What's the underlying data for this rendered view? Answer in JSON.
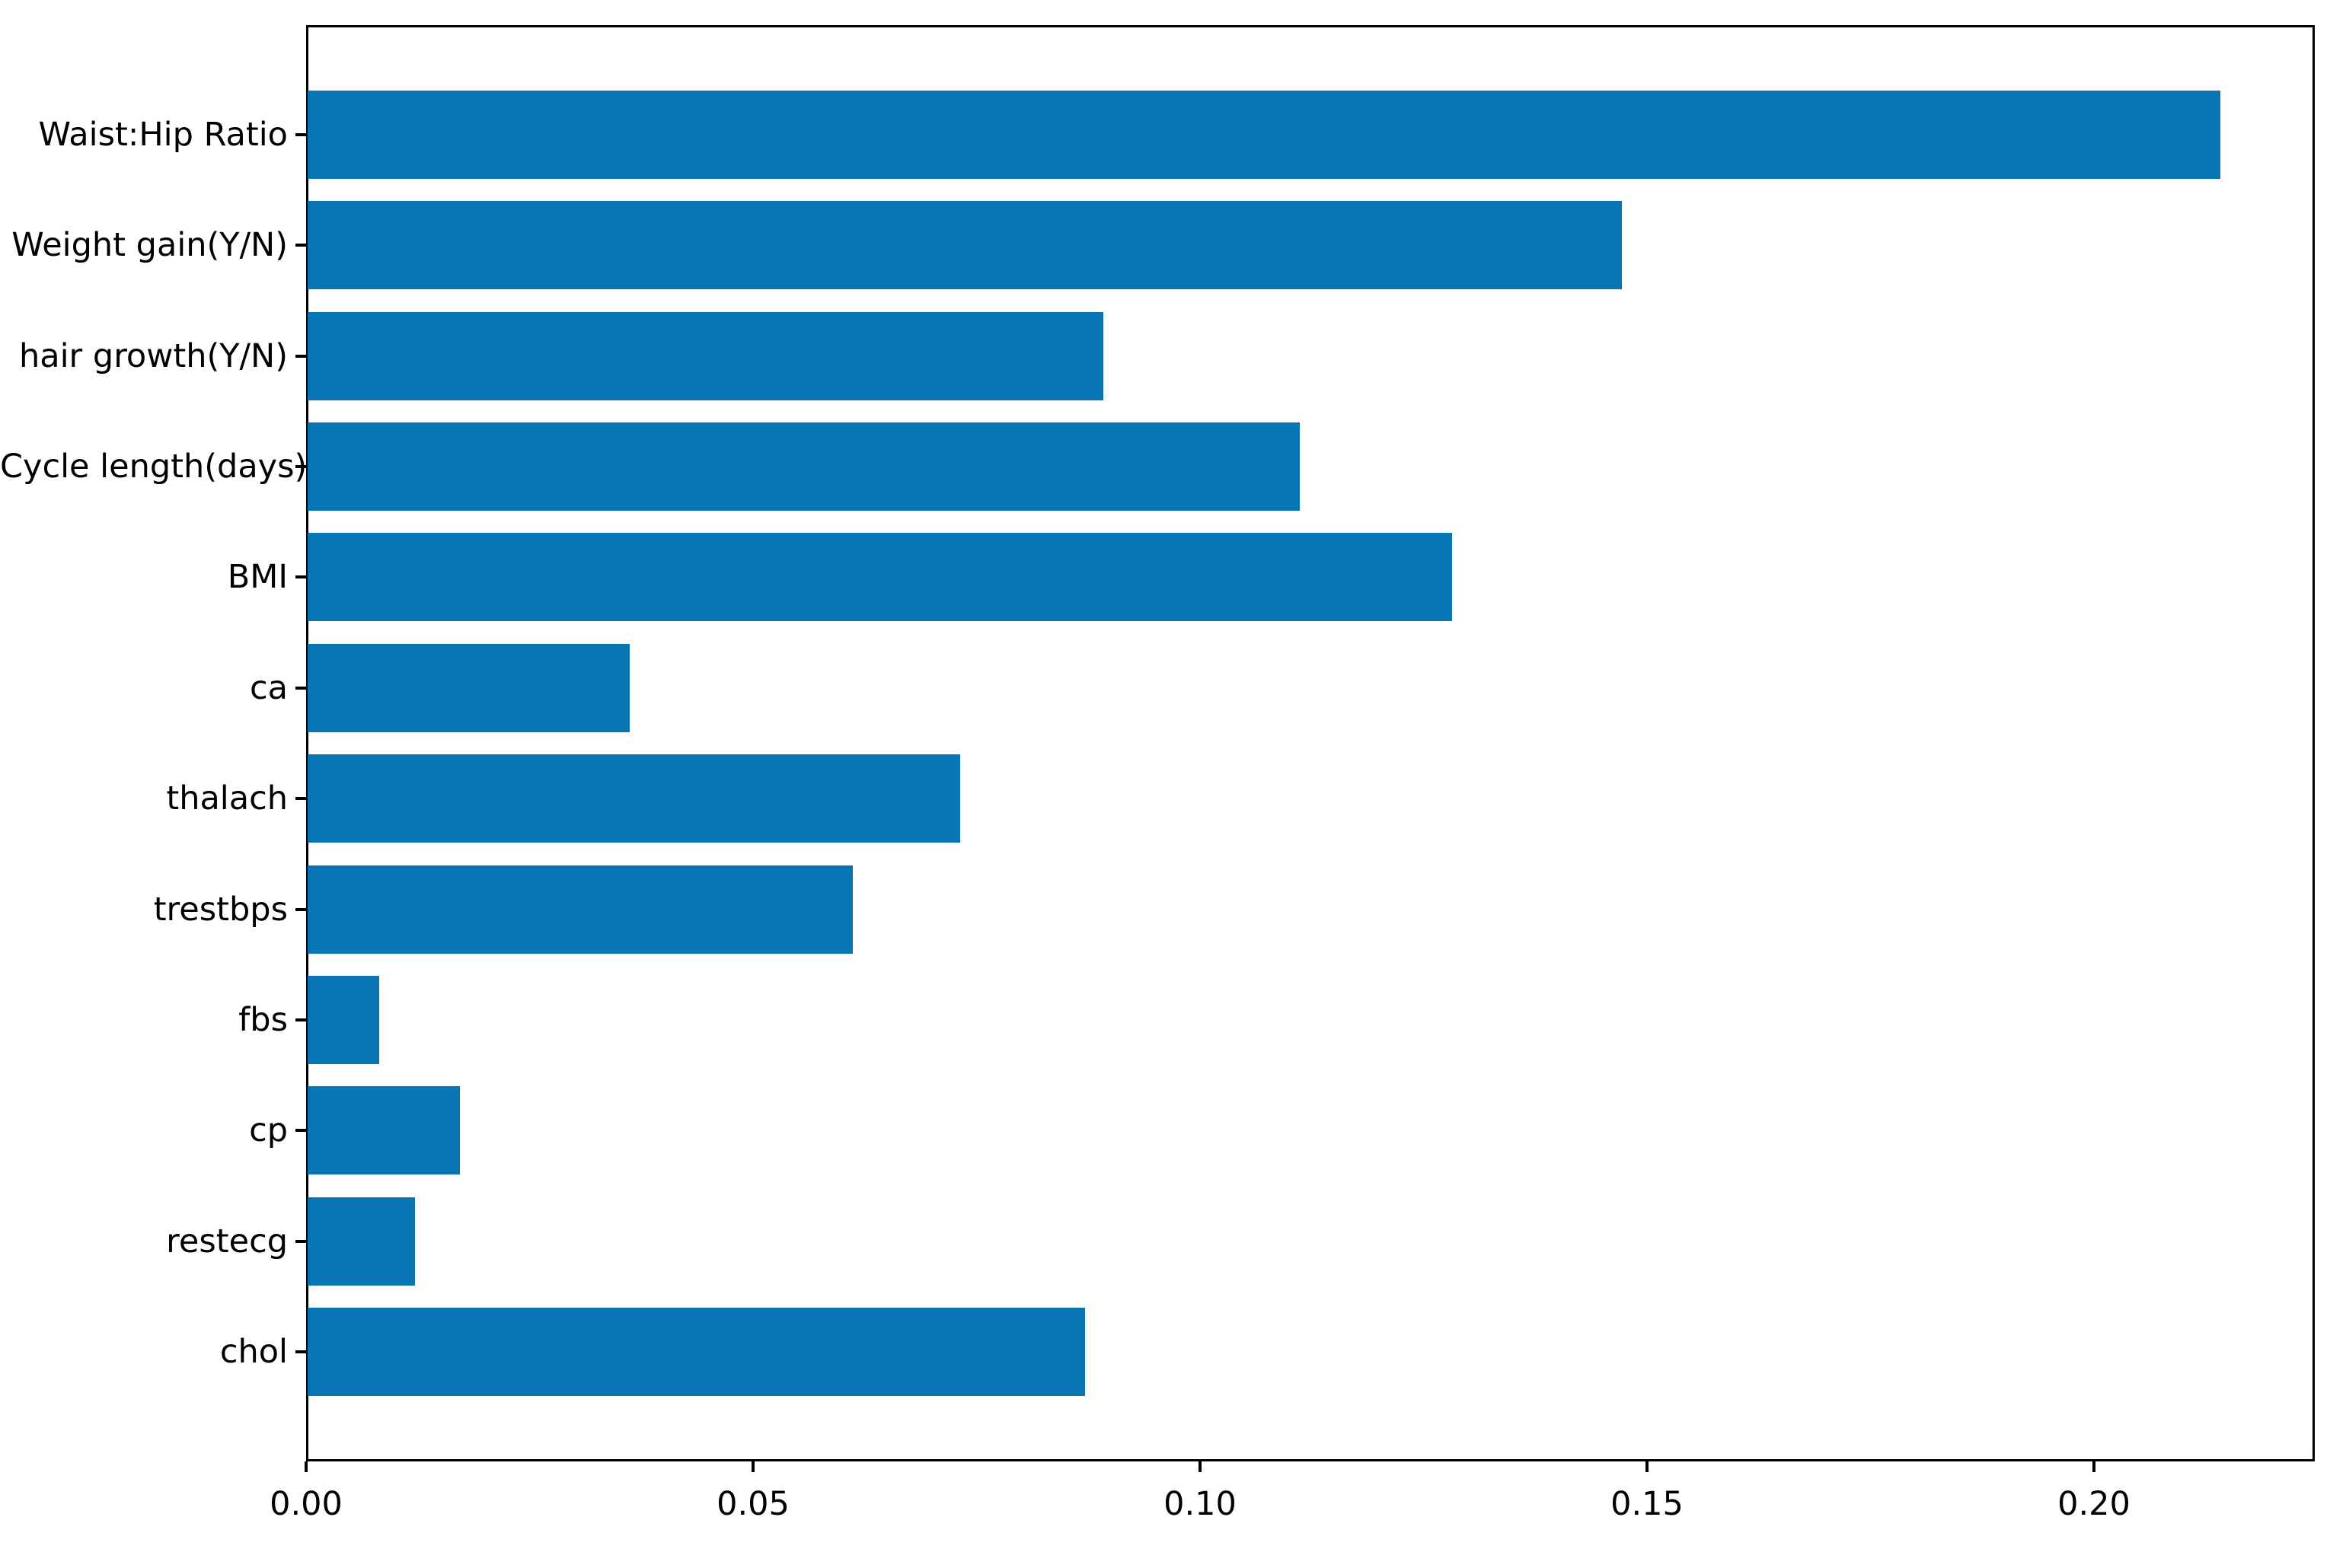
{
  "chart_data": {
    "type": "bar",
    "orientation": "horizontal",
    "title": "",
    "xlabel": "",
    "ylabel": "",
    "categories": [
      "Waist:Hip Ratio",
      "Weight gain(Y/N)",
      "hair growth(Y/N)",
      "Cycle length(days)",
      "BMI",
      "ca",
      "thalach",
      "trestbps",
      "fbs",
      "cp",
      "restecg",
      "chol"
    ],
    "values": [
      0.214,
      0.147,
      0.089,
      0.111,
      0.128,
      0.036,
      0.073,
      0.061,
      0.008,
      0.017,
      0.012,
      0.087
    ],
    "xlim": [
      0,
      0.2247
    ],
    "xticks": [
      0.0,
      0.05,
      0.1,
      0.15,
      0.2
    ],
    "xtick_labels": [
      "0.00",
      "0.05",
      "0.10",
      "0.15",
      "0.20"
    ],
    "bar_color": "#0876b4",
    "axis_color": "#000000",
    "background_color": "#ffffff",
    "grid": false,
    "legend": null
  }
}
